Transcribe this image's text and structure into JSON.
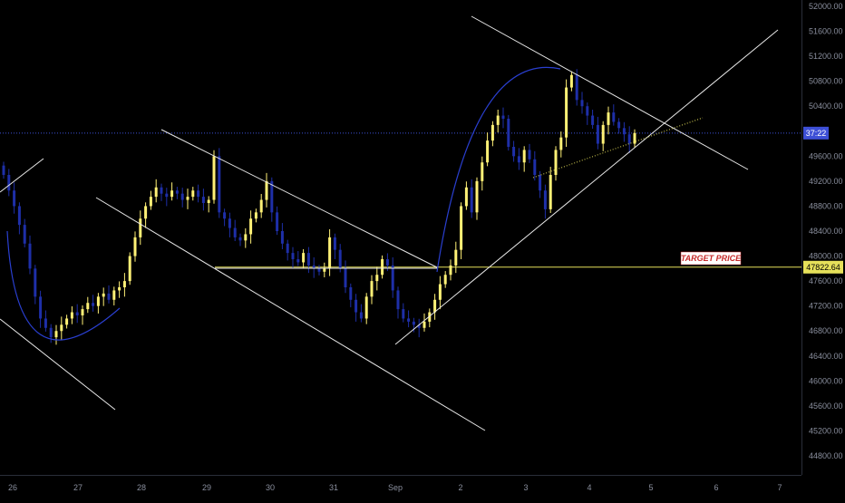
{
  "colors": {
    "background": "#000000",
    "candle_up": "#fff176",
    "candle_down": "#1e2fa8",
    "drawing": "#e8e8e8",
    "arc": "#2a3fd0",
    "target_line": "#e6e05a",
    "current_price_line": "#3d4fd6",
    "target_label_text": "#c62828",
    "target_label_bg": "#ffffff"
  },
  "price_scale": {
    "labels": [
      "52000.00",
      "51600.00",
      "51200.00",
      "50800.00",
      "50400.00",
      "49600.00",
      "49200.00",
      "48800.00",
      "48400.00",
      "48000.00",
      "47600.00",
      "47200.00",
      "46800.00",
      "46400.00",
      "46000.00",
      "45600.00",
      "45200.00",
      "44800.00"
    ],
    "countdown_badge": "37:22",
    "target_badge": "47822.64"
  },
  "time_scale": {
    "labels": [
      "26",
      "27",
      "28",
      "29",
      "30",
      "31",
      "Sep",
      "2",
      "3",
      "4",
      "5",
      "6",
      "7"
    ]
  },
  "annotations": {
    "target_label": "TARGET PRICE"
  },
  "chart_data": {
    "type": "candlestick",
    "y_range": [
      44500,
      52100
    ],
    "x_ticks": [
      "26",
      "27",
      "28",
      "29",
      "30",
      "31",
      "Sep",
      "2",
      "3",
      "4",
      "5",
      "6",
      "7"
    ],
    "target_price": 47822.64,
    "current_price": 49970,
    "grid": false,
    "closes": [
      49300,
      49050,
      48800,
      48500,
      48200,
      47800,
      47350,
      47000,
      46850,
      46700,
      46800,
      46900,
      47000,
      47100,
      47050,
      47150,
      47250,
      47200,
      47350,
      47400,
      47300,
      47450,
      47500,
      47600,
      48000,
      48300,
      48600,
      48800,
      48950,
      49100,
      49000,
      48950,
      49050,
      49000,
      48900,
      48950,
      49050,
      48950,
      48850,
      48900,
      49600,
      48700,
      48600,
      48450,
      48300,
      48250,
      48350,
      48600,
      48700,
      48900,
      49200,
      48700,
      48400,
      48200,
      48050,
      47950,
      47900,
      48050,
      47850,
      47800,
      47750,
      47800,
      48300,
      48100,
      47800,
      47500,
      47300,
      47100,
      47000,
      47350,
      47600,
      47700,
      47950,
      47850,
      47450,
      47150,
      47000,
      46950,
      46900,
      46850,
      46950,
      47100,
      47300,
      47550,
      47700,
      47850,
      48100,
      48800,
      49100,
      48700,
      49200,
      49500,
      49850,
      50100,
      50250,
      50200,
      49750,
      49600,
      49500,
      49700,
      49550,
      49300,
      49050,
      48750,
      49300,
      49700,
      49900,
      50700,
      50900,
      50500,
      50400,
      50250,
      50100,
      49800,
      50100,
      50300,
      50150,
      50050,
      49950,
      49800,
      49970
    ]
  }
}
